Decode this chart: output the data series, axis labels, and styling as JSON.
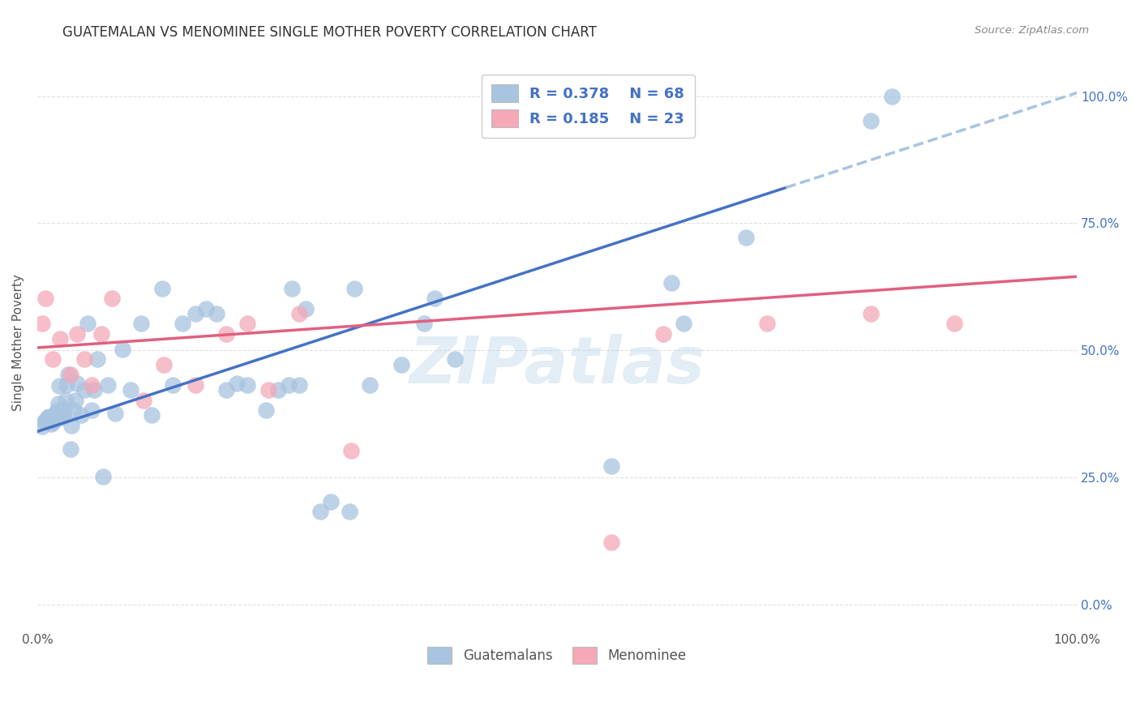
{
  "title": "GUATEMALAN VS MENOMINEE SINGLE MOTHER POVERTY CORRELATION CHART",
  "source": "Source: ZipAtlas.com",
  "ylabel": "Single Mother Poverty",
  "xlim": [
    0.0,
    1.0
  ],
  "ylim": [
    -0.05,
    1.08
  ],
  "right_yticks": [
    0.0,
    0.25,
    0.5,
    0.75,
    1.0
  ],
  "right_yticklabels": [
    "0.0%",
    "25.0%",
    "50.0%",
    "75.0%",
    "100.0%"
  ],
  "xticks": [
    0.0,
    0.25,
    0.5,
    0.75,
    1.0
  ],
  "xticklabels": [
    "0.0%",
    "",
    "",
    "",
    "100.0%"
  ],
  "blue_color": "#A8C4E0",
  "pink_color": "#F4A8B8",
  "blue_line_color": "#4472C4",
  "pink_line_color": "#E06080",
  "dashed_line_color": "#A8C4E0",
  "watermark": "ZIPatlas",
  "guatemalans_label": "Guatemalans",
  "menominee_label": "Menominee",
  "guatemalan_x": [
    0.005,
    0.007,
    0.008,
    0.009,
    0.01,
    0.011,
    0.013,
    0.015,
    0.016,
    0.017,
    0.018,
    0.019,
    0.02,
    0.021,
    0.023,
    0.025,
    0.026,
    0.027,
    0.028,
    0.03,
    0.032,
    0.033,
    0.035,
    0.037,
    0.038,
    0.042,
    0.045,
    0.048,
    0.052,
    0.055,
    0.058,
    0.063,
    0.068,
    0.075,
    0.082,
    0.09,
    0.1,
    0.11,
    0.12,
    0.13,
    0.14,
    0.152,
    0.162,
    0.172,
    0.182,
    0.192,
    0.202,
    0.22,
    0.232,
    0.242,
    0.245,
    0.252,
    0.258,
    0.272,
    0.282,
    0.3,
    0.305,
    0.32,
    0.35,
    0.372,
    0.382,
    0.402,
    0.552,
    0.61,
    0.622,
    0.682,
    0.802,
    0.822
  ],
  "guatemalan_y": [
    0.35,
    0.36,
    0.362,
    0.365,
    0.368,
    0.37,
    0.355,
    0.358,
    0.362,
    0.37,
    0.375,
    0.38,
    0.395,
    0.43,
    0.368,
    0.372,
    0.382,
    0.402,
    0.432,
    0.452,
    0.305,
    0.352,
    0.382,
    0.402,
    0.435,
    0.372,
    0.422,
    0.552,
    0.382,
    0.422,
    0.482,
    0.252,
    0.432,
    0.375,
    0.502,
    0.422,
    0.552,
    0.372,
    0.622,
    0.432,
    0.552,
    0.572,
    0.582,
    0.572,
    0.422,
    0.435,
    0.432,
    0.382,
    0.422,
    0.432,
    0.622,
    0.432,
    0.582,
    0.182,
    0.202,
    0.182,
    0.622,
    0.432,
    0.472,
    0.552,
    0.602,
    0.482,
    0.272,
    0.632,
    0.552,
    0.722,
    0.952,
    1.0
  ],
  "menominee_x": [
    0.005,
    0.008,
    0.015,
    0.022,
    0.032,
    0.038,
    0.045,
    0.052,
    0.062,
    0.072,
    0.102,
    0.122,
    0.152,
    0.182,
    0.202,
    0.222,
    0.252,
    0.302,
    0.552,
    0.602,
    0.702,
    0.802,
    0.882
  ],
  "menominee_y": [
    0.552,
    0.602,
    0.482,
    0.522,
    0.452,
    0.532,
    0.482,
    0.432,
    0.532,
    0.602,
    0.402,
    0.472,
    0.432,
    0.532,
    0.552,
    0.422,
    0.572,
    0.302,
    0.122,
    0.532,
    0.552,
    0.572,
    0.552
  ],
  "blue_trend_x0": 0.0,
  "blue_trend_x1": 0.72,
  "blue_trend_y0": 0.34,
  "blue_trend_y1": 0.82,
  "dashed_trend_x0": 0.72,
  "dashed_trend_x1": 1.02,
  "dashed_trend_y0": 0.82,
  "dashed_trend_y1": 1.02,
  "pink_trend_x0": 0.0,
  "pink_trend_x1": 1.0,
  "pink_trend_y0": 0.505,
  "pink_trend_y1": 0.645,
  "grid_color": "#E0E0E0",
  "title_fontsize": 12,
  "tick_fontsize": 11,
  "legend_fontsize": 13
}
